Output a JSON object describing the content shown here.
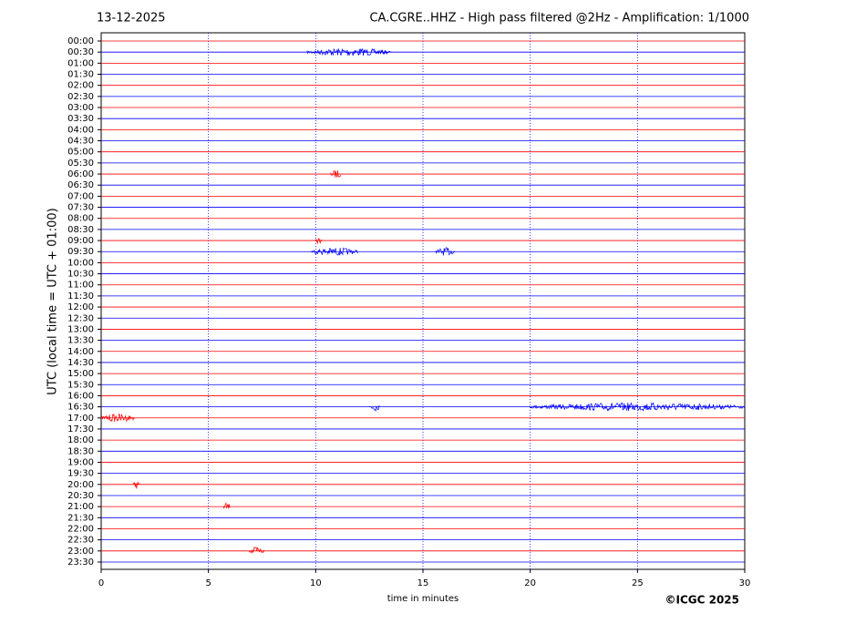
{
  "chart_data": {
    "type": "helicorder",
    "date": "13-12-2025",
    "title": "CA.CGRE..HHZ - High pass filtered @2Hz - Amplification: 1/1000",
    "y_label": "UTC (local time = UTC + 01:00)",
    "x_label": "time in minutes",
    "credit": "©ICGC 2025",
    "categories": [
      "00:00",
      "00:30",
      "01:00",
      "01:30",
      "02:00",
      "02:30",
      "03:00",
      "03:30",
      "04:00",
      "04:30",
      "05:00",
      "05:30",
      "06:00",
      "06:30",
      "07:00",
      "07:30",
      "08:00",
      "08:30",
      "09:00",
      "09:30",
      "10:00",
      "10:30",
      "11:00",
      "11:30",
      "12:00",
      "12:30",
      "13:00",
      "13:30",
      "14:00",
      "14:30",
      "15:00",
      "15:30",
      "16:00",
      "16:30",
      "17:00",
      "17:30",
      "18:00",
      "18:30",
      "19:00",
      "19:30",
      "20:00",
      "20:30",
      "21:00",
      "21:30",
      "22:00",
      "22:30",
      "23:00",
      "23:30"
    ],
    "colors": [
      "#ff0000",
      "#0000ff"
    ],
    "xlim": [
      0,
      30
    ],
    "xticks": [
      0,
      5,
      10,
      15,
      20,
      25,
      30
    ],
    "grid": true,
    "bursts": [
      {
        "row": 1,
        "start": 9.6,
        "end": 13.5
      },
      {
        "row": 12,
        "start": 10.7,
        "end": 11.2
      },
      {
        "row": 18,
        "start": 10.0,
        "end": 10.3
      },
      {
        "row": 19,
        "start": 9.8,
        "end": 12.0
      },
      {
        "row": 19,
        "start": 15.6,
        "end": 16.5
      },
      {
        "row": 33,
        "start": 12.5,
        "end": 13.0
      },
      {
        "row": 33,
        "start": 20.0,
        "end": 30
      },
      {
        "row": 34,
        "start": 0,
        "end": 1.6
      },
      {
        "row": 40,
        "start": 1.5,
        "end": 1.8
      },
      {
        "row": 42,
        "start": 5.7,
        "end": 6.0
      },
      {
        "row": 46,
        "start": 6.9,
        "end": 7.6
      }
    ]
  }
}
